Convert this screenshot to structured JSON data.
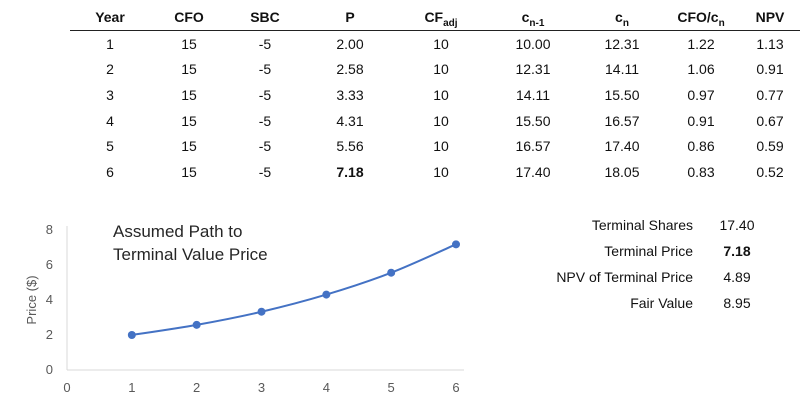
{
  "table": {
    "headers": {
      "year": "Year",
      "cfo": "CFO",
      "sbc": "SBC",
      "p": "P",
      "cfadj_main": "CF",
      "cfadj_sub": "adj",
      "cn1_main": "c",
      "cn1_sub": "n-1",
      "cn_main": "c",
      "cn_sub": "n",
      "ratio_main": "CFO/c",
      "ratio_sub": "n",
      "npv": "NPV"
    },
    "rows": [
      {
        "year": "1",
        "cfo": "15",
        "sbc": "-5",
        "p": "2.00",
        "cfadj": "10",
        "cn1": "10.00",
        "cn": "12.31",
        "ratio": "1.22",
        "npv": "1.13"
      },
      {
        "year": "2",
        "cfo": "15",
        "sbc": "-5",
        "p": "2.58",
        "cfadj": "10",
        "cn1": "12.31",
        "cn": "14.11",
        "ratio": "1.06",
        "npv": "0.91"
      },
      {
        "year": "3",
        "cfo": "15",
        "sbc": "-5",
        "p": "3.33",
        "cfadj": "10",
        "cn1": "14.11",
        "cn": "15.50",
        "ratio": "0.97",
        "npv": "0.77"
      },
      {
        "year": "4",
        "cfo": "15",
        "sbc": "-5",
        "p": "4.31",
        "cfadj": "10",
        "cn1": "15.50",
        "cn": "16.57",
        "ratio": "0.91",
        "npv": "0.67"
      },
      {
        "year": "5",
        "cfo": "15",
        "sbc": "-5",
        "p": "5.56",
        "cfadj": "10",
        "cn1": "16.57",
        "cn": "17.40",
        "ratio": "0.86",
        "npv": "0.59"
      },
      {
        "year": "6",
        "cfo": "15",
        "sbc": "-5",
        "p": "7.18",
        "cfadj": "10",
        "cn1": "17.40",
        "cn": "18.05",
        "ratio": "0.83",
        "npv": "0.52"
      }
    ]
  },
  "summary": [
    {
      "label": "Terminal Shares",
      "value": "17.40",
      "bold": false
    },
    {
      "label": "Terminal Price",
      "value": "7.18",
      "bold": true
    },
    {
      "label": "NPV of Terminal Price",
      "value": "4.89",
      "bold": false
    },
    {
      "label": "Fair Value",
      "value": "8.95",
      "bold": false
    }
  ],
  "chart_data": {
    "type": "line",
    "title_lines": [
      "Assumed Path to",
      "Terminal Value Price"
    ],
    "xlabel": "",
    "ylabel": "Price ($)",
    "x": [
      1,
      2,
      3,
      4,
      5,
      6
    ],
    "series": [
      {
        "values": [
          2.0,
          2.58,
          3.33,
          4.31,
          5.56,
          7.18
        ]
      }
    ],
    "xlim": [
      0,
      6
    ],
    "ylim": [
      0,
      8
    ],
    "xticks": [
      "0",
      "1",
      "2",
      "3",
      "4",
      "5",
      "6"
    ],
    "yticks": [
      "0",
      "2",
      "4",
      "6",
      "8"
    ],
    "grid": false,
    "line_color": "#4472c4",
    "axis_color": "#d9d9d9",
    "tick_color": "#595959"
  }
}
